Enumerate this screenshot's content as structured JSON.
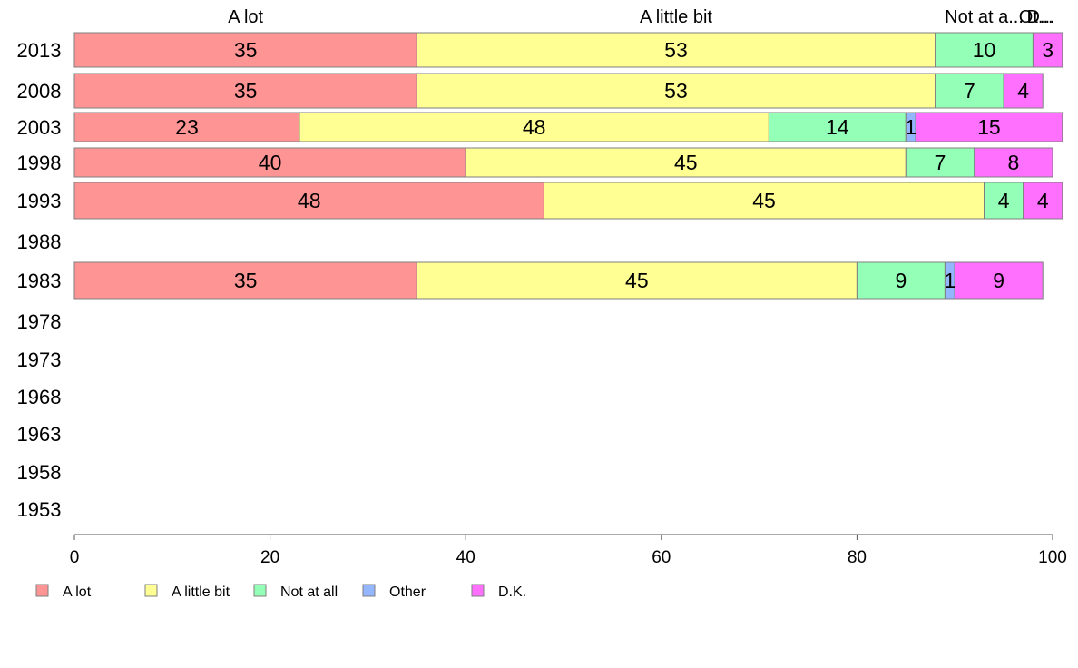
{
  "chart_data": {
    "type": "bar",
    "orientation": "horizontal",
    "stacked": true,
    "categories": [
      "2013",
      "2008",
      "2003",
      "1998",
      "1993",
      "1988",
      "1983",
      "1978",
      "1973",
      "1968",
      "1963",
      "1958",
      "1953"
    ],
    "series": [
      {
        "name": "A lot",
        "color": "#ff9494",
        "values": [
          35,
          35,
          23,
          40,
          48,
          null,
          35,
          null,
          null,
          null,
          null,
          null,
          null
        ]
      },
      {
        "name": "A little bit",
        "color": "#ffff94",
        "values": [
          53,
          53,
          48,
          45,
          45,
          null,
          45,
          null,
          null,
          null,
          null,
          null,
          null
        ]
      },
      {
        "name": "Not at all",
        "color": "#94ffb6",
        "values": [
          10,
          7,
          14,
          7,
          4,
          null,
          9,
          null,
          null,
          null,
          null,
          null,
          null
        ]
      },
      {
        "name": "Other",
        "color": "#94b6ff",
        "values": [
          0,
          0,
          1,
          0,
          0,
          null,
          1,
          null,
          null,
          null,
          null,
          null,
          null
        ]
      },
      {
        "name": "D.K.",
        "color": "#ff70ff",
        "values": [
          3,
          4,
          15,
          8,
          4,
          null,
          9,
          null,
          null,
          null,
          null,
          null,
          null
        ]
      }
    ],
    "segment_labels": [
      [
        "35",
        "53",
        "10",
        "",
        "3"
      ],
      [
        "35",
        "53",
        "7",
        "",
        "4"
      ],
      [
        "23",
        "48",
        "14",
        "1",
        "15"
      ],
      [
        "40",
        "45",
        "7",
        "",
        "8"
      ],
      [
        "48",
        "45",
        "4",
        "",
        "4"
      ],
      null,
      [
        "35",
        "45",
        "9",
        "1",
        "9"
      ],
      null,
      null,
      null,
      null,
      null,
      null
    ],
    "top_labels": [
      "A lot",
      "A little bit",
      "Not at a...",
      "Ot...",
      "D..."
    ],
    "xlim": [
      0,
      100
    ],
    "xticks": [
      0,
      20,
      40,
      60,
      80,
      100
    ],
    "grid": false,
    "legend_position": "bottom-left",
    "title": "",
    "xlabel": "",
    "ylabel": ""
  }
}
